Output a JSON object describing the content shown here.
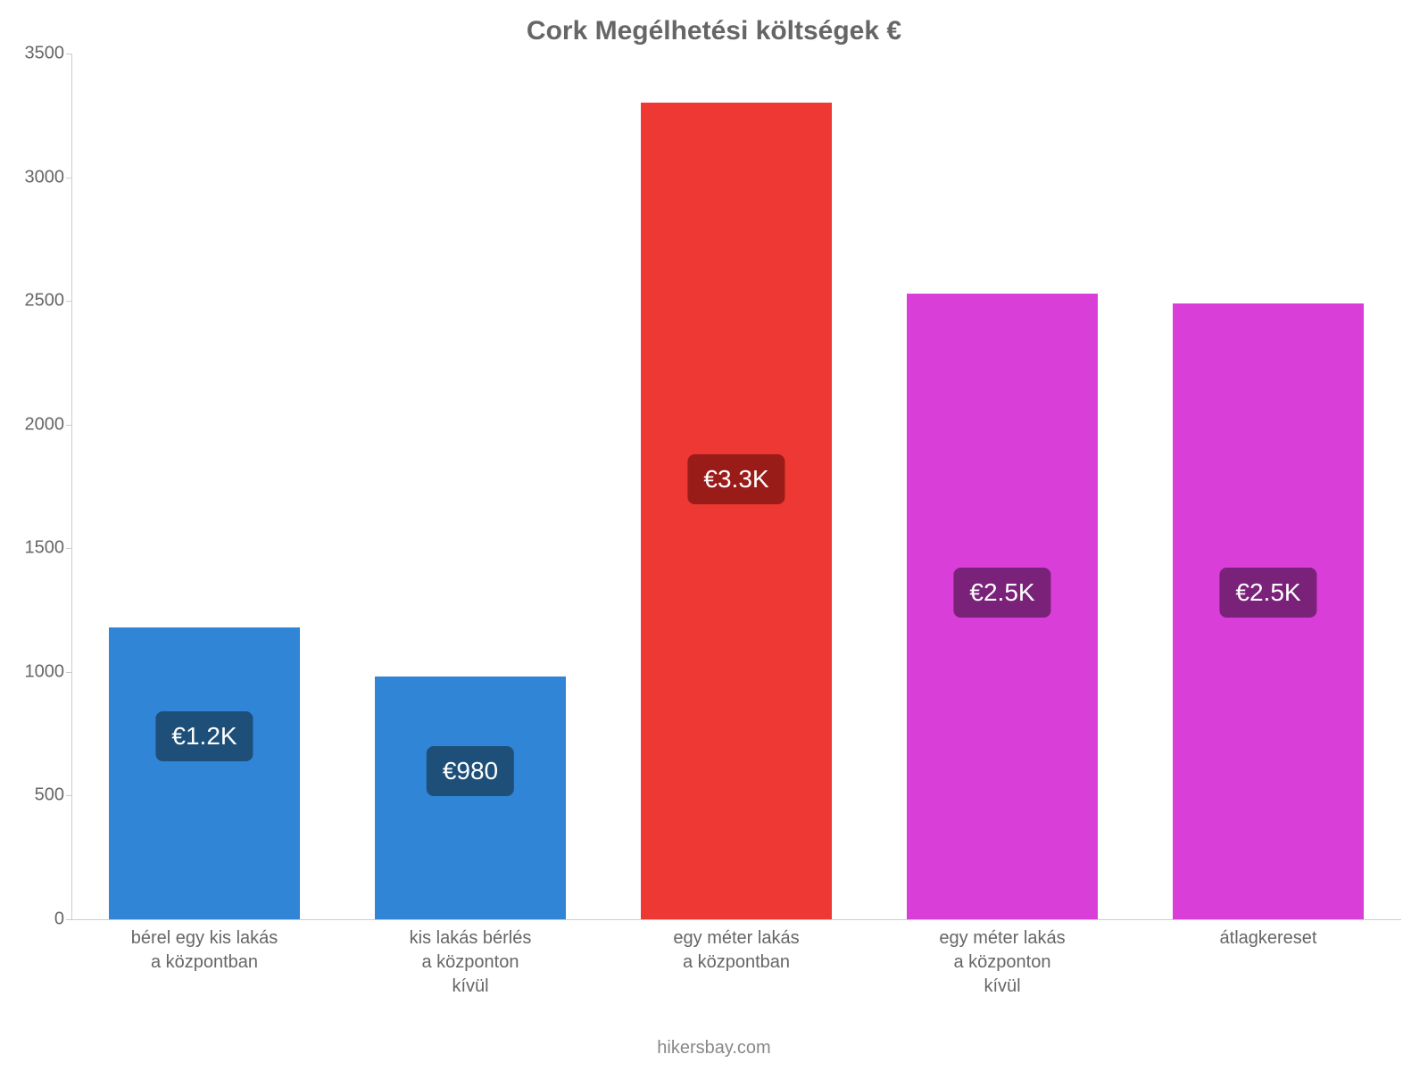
{
  "chart": {
    "type": "bar",
    "title": "Cork Megélhetési költségek €",
    "title_fontsize": 30,
    "title_color": "#666666",
    "footer": "hikersbay.com",
    "footer_fontsize": 20,
    "footer_color": "#888888",
    "background_color": "#ffffff",
    "axis_color": "#cccccc",
    "label_color": "#666666",
    "label_fontsize": 20,
    "ylim": [
      0,
      3500
    ],
    "ytick_step": 500,
    "yticks": [
      {
        "v": 0,
        "label": "0"
      },
      {
        "v": 500,
        "label": "500"
      },
      {
        "v": 1000,
        "label": "1000"
      },
      {
        "v": 1500,
        "label": "1500"
      },
      {
        "v": 2000,
        "label": "2000"
      },
      {
        "v": 2500,
        "label": "2500"
      },
      {
        "v": 3000,
        "label": "3000"
      },
      {
        "v": 3500,
        "label": "3500"
      }
    ],
    "bar_width_ratio": 0.72,
    "value_bubble_fontsize": 28,
    "bars": [
      {
        "label_lines": [
          "bérel egy kis lakás",
          "a központban"
        ],
        "value": 1180,
        "value_text": "€1.2K",
        "bar_color": "#3085d6",
        "bubble_bg": "#1e4f78",
        "bubble_top_value": 840
      },
      {
        "label_lines": [
          "kis lakás bérlés",
          "a központon",
          "kívül"
        ],
        "value": 980,
        "value_text": "€980",
        "bar_color": "#3085d6",
        "bubble_bg": "#1e4f78",
        "bubble_top_value": 700
      },
      {
        "label_lines": [
          "egy méter lakás",
          "a központban"
        ],
        "value": 3300,
        "value_text": "€3.3K",
        "bar_color": "#ed3833",
        "bubble_bg": "#9a1c19",
        "bubble_top_value": 1880
      },
      {
        "label_lines": [
          "egy méter lakás",
          "a központon",
          "kívül"
        ],
        "value": 2530,
        "value_text": "€2.5K",
        "bar_color": "#d93ed9",
        "bubble_bg": "#7a2179",
        "bubble_top_value": 1420
      },
      {
        "label_lines": [
          "átlagkereset"
        ],
        "value": 2490,
        "value_text": "€2.5K",
        "bar_color": "#d93ed9",
        "bubble_bg": "#7a2179",
        "bubble_top_value": 1420
      }
    ]
  }
}
